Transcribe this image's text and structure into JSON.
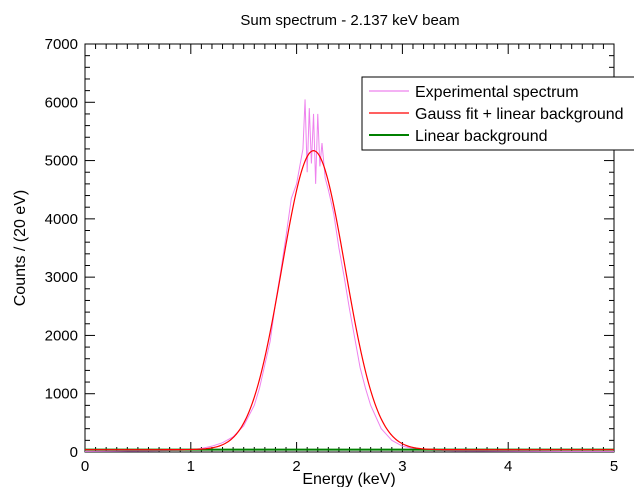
{
  "chart_data": {
    "type": "line",
    "title": "Sum spectrum - 2.137 keV beam",
    "xlabel": "Energy (keV)",
    "ylabel": "Counts / (20 eV)",
    "xlim": [
      0,
      5
    ],
    "ylim": [
      0,
      7000
    ],
    "xticks": [
      0,
      1,
      2,
      3,
      4,
      5
    ],
    "yticks": [
      0,
      1000,
      2000,
      3000,
      4000,
      5000,
      6000,
      7000
    ],
    "grid": false,
    "legend_position": "top-right",
    "series": [
      {
        "name": "Experimental spectrum",
        "color": "#ee82ee",
        "x": [
          0.0,
          0.3,
          0.6,
          0.9,
          1.0,
          1.1,
          1.2,
          1.3,
          1.4,
          1.5,
          1.6,
          1.65,
          1.7,
          1.75,
          1.8,
          1.85,
          1.9,
          1.95,
          2.0,
          2.03,
          2.06,
          2.08,
          2.1,
          2.12,
          2.14,
          2.16,
          2.18,
          2.2,
          2.22,
          2.24,
          2.27,
          2.3,
          2.35,
          2.4,
          2.45,
          2.5,
          2.55,
          2.6,
          2.65,
          2.7,
          2.8,
          2.9,
          3.0,
          3.1,
          3.2,
          3.3,
          3.5,
          4.0,
          4.5,
          5.0
        ],
        "y": [
          10,
          15,
          20,
          30,
          40,
          60,
          100,
          160,
          260,
          450,
          800,
          1100,
          1500,
          1900,
          2550,
          3100,
          3700,
          4350,
          4600,
          4900,
          5200,
          6050,
          4800,
          5900,
          4950,
          5800,
          4600,
          5800,
          4900,
          5300,
          4700,
          4500,
          4100,
          3500,
          3000,
          2450,
          1950,
          1450,
          1100,
          800,
          400,
          200,
          100,
          60,
          40,
          30,
          20,
          15,
          10,
          10
        ]
      },
      {
        "name": "Gauss fit + linear background",
        "color": "#ff0000",
        "function": "gauss",
        "amplitude": 5130,
        "mean": 2.16,
        "sigma": 0.3,
        "background": 40
      },
      {
        "name": "Linear background",
        "color": "#008000",
        "x": [
          0,
          5
        ],
        "y": [
          40,
          40
        ]
      }
    ]
  }
}
